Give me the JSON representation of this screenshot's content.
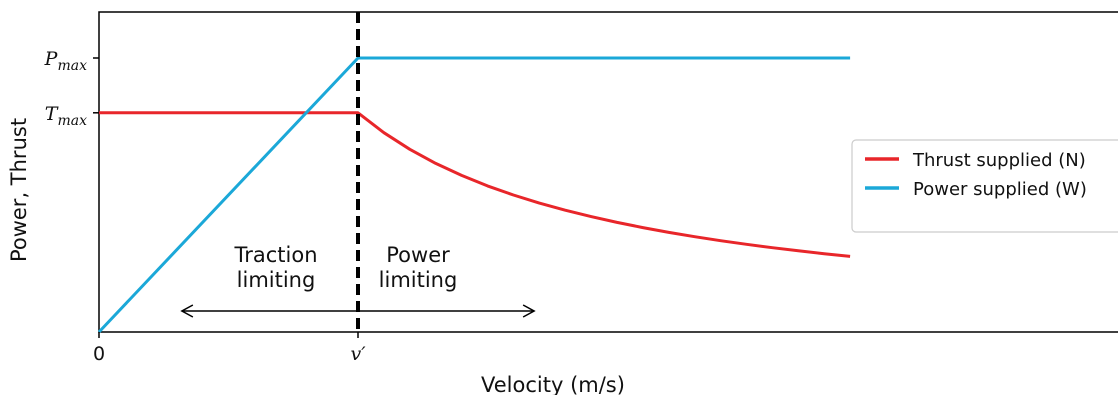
{
  "chart_data": {
    "type": "line",
    "title": "",
    "xlabel": "Velocity (m/s)",
    "ylabel": "Power, Thrust",
    "x_ticks": [
      {
        "x": 0,
        "label": "0"
      },
      {
        "x": 1,
        "label": "v′"
      }
    ],
    "y_ticks": [
      {
        "y": 1.0,
        "base": "P",
        "sub": "max"
      },
      {
        "y": 0.8,
        "base": "T",
        "sub": "max"
      }
    ],
    "xlim": [
      0,
      2.9
    ],
    "ylim": [
      0,
      1.2
    ],
    "grid": false,
    "legend_position": "right",
    "series": [
      {
        "name": "Thrust supplied (N)",
        "color": "#e8262a",
        "points": [
          [
            0,
            0.8
          ],
          [
            1,
            0.8
          ],
          [
            1.1,
            0.7273
          ],
          [
            1.2,
            0.6667
          ],
          [
            1.3,
            0.6154
          ],
          [
            1.4,
            0.5714
          ],
          [
            1.5,
            0.5333
          ],
          [
            1.6,
            0.5
          ],
          [
            1.7,
            0.4706
          ],
          [
            1.8,
            0.4444
          ],
          [
            1.9,
            0.4211
          ],
          [
            2.0,
            0.4
          ],
          [
            2.1,
            0.381
          ],
          [
            2.2,
            0.3636
          ],
          [
            2.3,
            0.3478
          ],
          [
            2.4,
            0.3333
          ],
          [
            2.5,
            0.32
          ],
          [
            2.6,
            0.3077
          ],
          [
            2.7,
            0.2963
          ],
          [
            2.8,
            0.2857
          ],
          [
            2.9,
            0.2759
          ]
        ]
      },
      {
        "name": "Power supplied (W)",
        "color": "#1ba8d8",
        "points": [
          [
            0,
            0
          ],
          [
            1,
            1.0
          ],
          [
            2.9,
            1.0
          ]
        ]
      }
    ],
    "annotations": {
      "divider_x": 1,
      "traction_label": [
        "Traction",
        "limiting"
      ],
      "power_label": [
        "Power",
        "limiting"
      ],
      "arrow_range": [
        0.32,
        1.68
      ]
    }
  }
}
